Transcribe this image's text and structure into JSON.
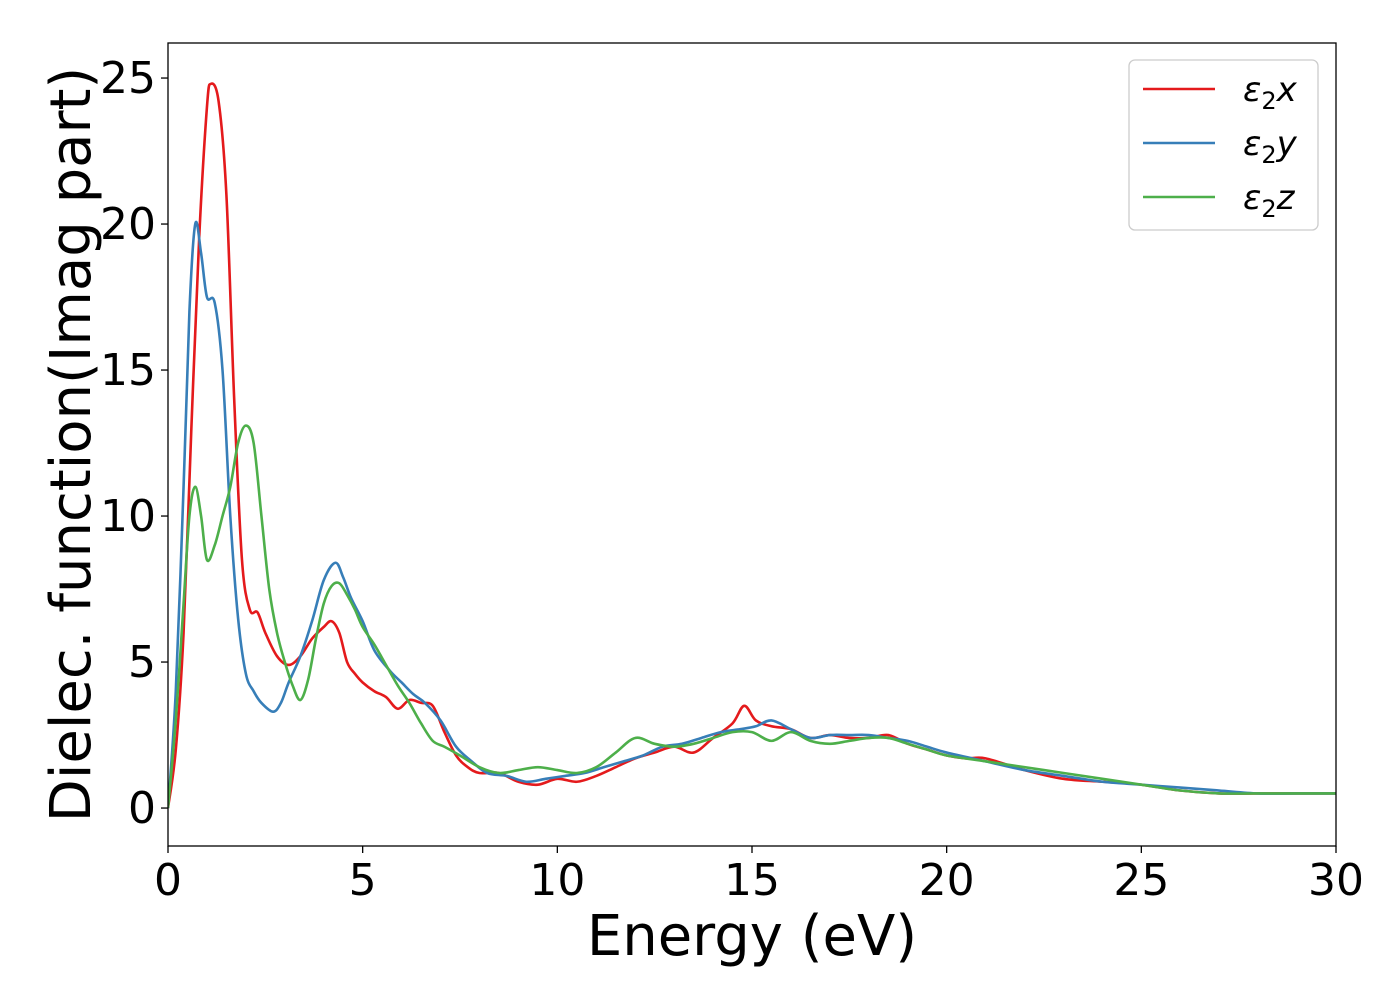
{
  "chart_data": {
    "type": "line",
    "xlabel": "Energy (eV)",
    "ylabel": "Dielec. function(Imag part)",
    "xlim": [
      0,
      30
    ],
    "ylim": [
      -1.3,
      26.2
    ],
    "xticks": [
      "0",
      "5",
      "10",
      "15",
      "20",
      "25",
      "30"
    ],
    "yticks": [
      "0",
      "5",
      "10",
      "15",
      "20",
      "25"
    ],
    "grid": false,
    "legend_position": "top-right",
    "series": [
      {
        "name": "ε2x",
        "legend": {
          "base": "ε",
          "sub": "2",
          "var": "x"
        },
        "color": "#e41a1c",
        "x": [
          0,
          0.2,
          0.4,
          0.6,
          0.8,
          1.0,
          1.1,
          1.3,
          1.5,
          1.7,
          1.9,
          2.1,
          2.3,
          2.5,
          2.8,
          3.1,
          3.4,
          3.7,
          4.0,
          4.2,
          4.4,
          4.6,
          4.8,
          5.0,
          5.3,
          5.6,
          5.9,
          6.2,
          6.5,
          6.8,
          7.1,
          7.4,
          7.7,
          8.0,
          8.5,
          9.0,
          9.5,
          10.0,
          10.5,
          11.0,
          11.5,
          12.0,
          12.5,
          13.0,
          13.5,
          14.0,
          14.5,
          14.8,
          15.1,
          15.5,
          16.0,
          16.5,
          17.0,
          17.5,
          18.0,
          18.5,
          19.0,
          19.5,
          20.0,
          20.5,
          21.0,
          22.0,
          23.0,
          24.0,
          25.0,
          26.0,
          27.0,
          28.0,
          29.0,
          30.0
        ],
        "values": [
          0,
          2.0,
          6.0,
          13.0,
          19.5,
          24.0,
          24.8,
          24.2,
          21.0,
          14.0,
          8.5,
          6.8,
          6.7,
          6.0,
          5.2,
          4.9,
          5.2,
          5.8,
          6.2,
          6.4,
          6.0,
          5.0,
          4.6,
          4.3,
          4.0,
          3.8,
          3.4,
          3.7,
          3.6,
          3.5,
          2.6,
          1.8,
          1.4,
          1.2,
          1.2,
          0.9,
          0.8,
          1.0,
          0.9,
          1.1,
          1.4,
          1.7,
          1.9,
          2.1,
          1.9,
          2.4,
          2.9,
          3.5,
          3.0,
          2.8,
          2.7,
          2.4,
          2.5,
          2.4,
          2.4,
          2.5,
          2.2,
          2.0,
          1.8,
          1.7,
          1.7,
          1.3,
          1.0,
          0.9,
          0.8,
          0.6,
          0.5,
          0.5,
          0.5,
          0.5
        ]
      },
      {
        "name": "ε2y",
        "legend": {
          "base": "ε",
          "sub": "2",
          "var": "y"
        },
        "color": "#377eb8",
        "x": [
          0,
          0.2,
          0.4,
          0.55,
          0.7,
          0.85,
          1.0,
          1.2,
          1.4,
          1.6,
          1.8,
          2.0,
          2.2,
          2.4,
          2.7,
          2.9,
          3.1,
          3.4,
          3.7,
          4.0,
          4.3,
          4.5,
          4.7,
          5.0,
          5.3,
          5.7,
          6.0,
          6.3,
          6.6,
          7.0,
          7.4,
          7.8,
          8.2,
          8.7,
          9.2,
          9.7,
          10.2,
          10.7,
          11.2,
          11.7,
          12.2,
          12.7,
          13.2,
          13.7,
          14.2,
          14.7,
          15.1,
          15.5,
          16.0,
          16.5,
          17.0,
          17.5,
          18.0,
          18.5,
          19.0,
          19.5,
          20.0,
          21.0,
          22.0,
          23.0,
          24.0,
          25.0,
          26.0,
          27.0,
          28.0,
          29.0,
          30.0
        ],
        "values": [
          0,
          4.0,
          11.0,
          17.0,
          20.0,
          19.0,
          17.5,
          17.3,
          15.0,
          10.0,
          6.5,
          4.6,
          4.0,
          3.6,
          3.3,
          3.6,
          4.3,
          5.2,
          6.4,
          7.8,
          8.4,
          7.9,
          7.2,
          6.4,
          5.4,
          4.7,
          4.3,
          3.9,
          3.6,
          3.0,
          2.1,
          1.6,
          1.2,
          1.1,
          0.9,
          1.0,
          1.1,
          1.2,
          1.4,
          1.6,
          1.8,
          2.1,
          2.2,
          2.4,
          2.6,
          2.7,
          2.8,
          3.0,
          2.7,
          2.4,
          2.5,
          2.5,
          2.5,
          2.4,
          2.3,
          2.1,
          1.9,
          1.6,
          1.3,
          1.1,
          0.9,
          0.8,
          0.7,
          0.6,
          0.5,
          0.5,
          0.5
        ]
      },
      {
        "name": "ε2z",
        "legend": {
          "base": "ε",
          "sub": "2",
          "var": "z"
        },
        "color": "#4daf4a",
        "x": [
          0,
          0.2,
          0.4,
          0.55,
          0.7,
          0.85,
          1.0,
          1.2,
          1.4,
          1.6,
          1.8,
          2.0,
          2.2,
          2.4,
          2.6,
          2.8,
          3.0,
          3.2,
          3.4,
          3.6,
          3.8,
          4.0,
          4.2,
          4.4,
          4.6,
          4.8,
          5.0,
          5.3,
          5.6,
          5.9,
          6.2,
          6.5,
          6.8,
          7.1,
          7.5,
          8.0,
          8.5,
          9.0,
          9.5,
          10.0,
          10.5,
          11.0,
          11.5,
          12.0,
          12.5,
          13.0,
          13.5,
          14.0,
          14.5,
          15.0,
          15.5,
          16.0,
          16.5,
          17.0,
          17.5,
          18.0,
          18.5,
          19.0,
          19.5,
          20.0,
          21.0,
          22.0,
          23.0,
          24.0,
          25.0,
          26.0,
          27.0,
          28.0,
          29.0,
          30.0
        ],
        "values": [
          0,
          3.0,
          7.0,
          10.0,
          11.0,
          10.0,
          8.5,
          9.0,
          10.0,
          11.0,
          12.5,
          13.1,
          12.5,
          10.0,
          7.5,
          6.0,
          5.0,
          4.2,
          3.7,
          4.4,
          5.8,
          7.0,
          7.6,
          7.7,
          7.3,
          6.8,
          6.2,
          5.6,
          4.9,
          4.2,
          3.6,
          2.9,
          2.3,
          2.1,
          1.8,
          1.4,
          1.2,
          1.3,
          1.4,
          1.3,
          1.2,
          1.4,
          1.9,
          2.4,
          2.2,
          2.1,
          2.2,
          2.4,
          2.6,
          2.6,
          2.3,
          2.6,
          2.3,
          2.2,
          2.3,
          2.4,
          2.4,
          2.2,
          2.0,
          1.8,
          1.6,
          1.4,
          1.2,
          1.0,
          0.8,
          0.6,
          0.5,
          0.5,
          0.5,
          0.5
        ]
      }
    ]
  }
}
